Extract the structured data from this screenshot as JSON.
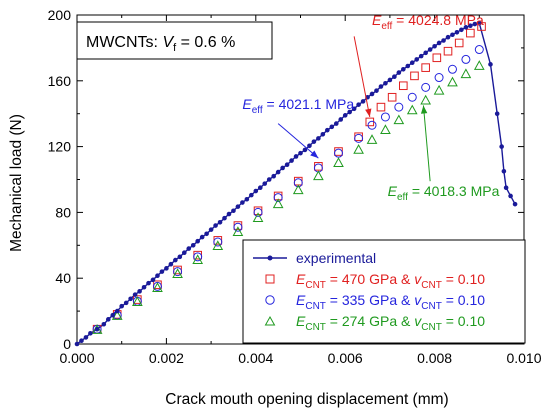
{
  "chart_data": {
    "type": "scatter",
    "title": "",
    "xlabel": "Crack mouth opening displacement (mm)",
    "ylabel": "Mechanical load (N)",
    "xlim": [
      0,
      0.01
    ],
    "ylim": [
      0,
      200
    ],
    "x_ticks": [
      0,
      0.002,
      0.004,
      0.006,
      0.008,
      0.01
    ],
    "x_tick_labels": [
      "0.000",
      "0.002",
      "0.004",
      "0.006",
      "0.008",
      "0.010"
    ],
    "y_ticks": [
      0,
      40,
      80,
      120,
      160,
      200
    ],
    "y_tick_labels": [
      "0",
      "40",
      "80",
      "120",
      "160",
      "200"
    ],
    "grid": false,
    "legend_position": "bottom-right",
    "info_box": {
      "prefix": "MWCNTs: ",
      "var": "V",
      "sub": "f",
      "suffix": " = 0.6 %"
    },
    "series": [
      {
        "name": "experimental",
        "marker": "filled-circle-line",
        "color": "#1a1a99",
        "points": [
          [
            0.0,
            0
          ],
          [
            0.0001,
            2
          ],
          [
            0.0002,
            4
          ],
          [
            0.0003,
            6.5
          ],
          [
            0.00045,
            9
          ],
          [
            0.0006,
            12
          ],
          [
            0.0007,
            15
          ],
          [
            0.0008,
            17.5
          ],
          [
            0.0009,
            20
          ],
          [
            0.001,
            23
          ],
          [
            0.0011,
            25
          ],
          [
            0.0012,
            27.5
          ],
          [
            0.0013,
            30
          ],
          [
            0.0014,
            32
          ],
          [
            0.0015,
            34.5
          ],
          [
            0.0016,
            37
          ],
          [
            0.0017,
            39
          ],
          [
            0.0018,
            41.5
          ],
          [
            0.0019,
            44
          ],
          [
            0.002,
            46
          ],
          [
            0.0021,
            48.5
          ],
          [
            0.0022,
            51
          ],
          [
            0.0023,
            53
          ],
          [
            0.0024,
            55.5
          ],
          [
            0.0025,
            58
          ],
          [
            0.0026,
            60
          ],
          [
            0.0027,
            62.5
          ],
          [
            0.0028,
            65
          ],
          [
            0.0029,
            67
          ],
          [
            0.003,
            69.5
          ],
          [
            0.0031,
            72
          ],
          [
            0.0032,
            74
          ],
          [
            0.0033,
            76.5
          ],
          [
            0.0034,
            79
          ],
          [
            0.0035,
            81
          ],
          [
            0.0036,
            83.5
          ],
          [
            0.0037,
            86
          ],
          [
            0.0038,
            88
          ],
          [
            0.0039,
            90.5
          ],
          [
            0.004,
            93
          ],
          [
            0.0041,
            95
          ],
          [
            0.0042,
            97.5
          ],
          [
            0.0043,
            100
          ],
          [
            0.0044,
            102
          ],
          [
            0.0045,
            104.5
          ],
          [
            0.0046,
            107
          ],
          [
            0.0047,
            109
          ],
          [
            0.0048,
            111.5
          ],
          [
            0.0049,
            114
          ],
          [
            0.005,
            116
          ],
          [
            0.0051,
            118
          ],
          [
            0.0052,
            120.5
          ],
          [
            0.0053,
            123
          ],
          [
            0.0054,
            125
          ],
          [
            0.0055,
            127.5
          ],
          [
            0.0056,
            130
          ],
          [
            0.0057,
            132
          ],
          [
            0.0058,
            134
          ],
          [
            0.0059,
            136.5
          ],
          [
            0.006,
            139
          ],
          [
            0.0061,
            141
          ],
          [
            0.0062,
            143
          ],
          [
            0.0063,
            145.5
          ],
          [
            0.0064,
            147.5
          ],
          [
            0.0065,
            150
          ],
          [
            0.0066,
            152
          ],
          [
            0.0067,
            154
          ],
          [
            0.0068,
            156.5
          ],
          [
            0.0069,
            158.5
          ],
          [
            0.007,
            160.5
          ],
          [
            0.0071,
            162.5
          ],
          [
            0.0072,
            165
          ],
          [
            0.0073,
            167
          ],
          [
            0.0074,
            169
          ],
          [
            0.0075,
            171
          ],
          [
            0.0076,
            173
          ],
          [
            0.0077,
            175
          ],
          [
            0.0078,
            177
          ],
          [
            0.0079,
            179
          ],
          [
            0.008,
            181
          ],
          [
            0.0081,
            183
          ],
          [
            0.0082,
            184.5
          ],
          [
            0.0083,
            186.5
          ],
          [
            0.0084,
            188
          ],
          [
            0.0085,
            189.5
          ],
          [
            0.0086,
            191
          ],
          [
            0.0087,
            192.5
          ],
          [
            0.0088,
            193.5
          ],
          [
            0.0089,
            194.5
          ],
          [
            0.009,
            195
          ],
          [
            0.00925,
            170
          ],
          [
            0.0094,
            140
          ],
          [
            0.0095,
            120
          ],
          [
            0.00955,
            105
          ],
          [
            0.0096,
            95
          ],
          [
            0.0097,
            90
          ],
          [
            0.0098,
            85
          ]
        ]
      },
      {
        "name_var": "E",
        "name_sub": "CNT",
        "name_mid": " = 470 GPa & ",
        "name_var2": "v",
        "name_sub2": "CNT",
        "name_tail": " = 0.10",
        "marker": "square",
        "color": "#e02020",
        "points": [
          [
            0.00045,
            9
          ],
          [
            0.0009,
            18
          ],
          [
            0.00135,
            27
          ],
          [
            0.0018,
            36
          ],
          [
            0.00225,
            45
          ],
          [
            0.0027,
            54
          ],
          [
            0.00315,
            63
          ],
          [
            0.0036,
            72
          ],
          [
            0.00405,
            81
          ],
          [
            0.0045,
            90
          ],
          [
            0.00495,
            99
          ],
          [
            0.0054,
            108
          ],
          [
            0.00585,
            117
          ],
          [
            0.0063,
            126
          ],
          [
            0.00655,
            135
          ],
          [
            0.0068,
            144
          ],
          [
            0.00705,
            150
          ],
          [
            0.0073,
            157
          ],
          [
            0.00755,
            163
          ],
          [
            0.0078,
            168
          ],
          [
            0.00805,
            174
          ],
          [
            0.0083,
            178
          ],
          [
            0.00855,
            183
          ],
          [
            0.0088,
            189
          ],
          [
            0.00905,
            193
          ]
        ]
      },
      {
        "name_var": "E",
        "name_sub": "CNT",
        "name_mid": " = 335 GPa & ",
        "name_var2": "v",
        "name_sub2": "CNT",
        "name_tail": " = 0.10",
        "marker": "circle",
        "color": "#2525dd",
        "points": [
          [
            0.00045,
            9
          ],
          [
            0.0009,
            17.5
          ],
          [
            0.00135,
            26
          ],
          [
            0.0018,
            35
          ],
          [
            0.00225,
            44
          ],
          [
            0.0027,
            53
          ],
          [
            0.00315,
            62
          ],
          [
            0.0036,
            71
          ],
          [
            0.00405,
            80
          ],
          [
            0.0045,
            89
          ],
          [
            0.00495,
            98
          ],
          [
            0.0054,
            107
          ],
          [
            0.00585,
            116
          ],
          [
            0.0063,
            125
          ],
          [
            0.0066,
            133
          ],
          [
            0.0069,
            138
          ],
          [
            0.0072,
            144
          ],
          [
            0.0075,
            150
          ],
          [
            0.0078,
            156
          ],
          [
            0.0081,
            162
          ],
          [
            0.0084,
            167
          ],
          [
            0.0087,
            173
          ],
          [
            0.009,
            179
          ]
        ]
      },
      {
        "name_var": "E",
        "name_sub": "CNT",
        "name_mid": " = 274 GPa & ",
        "name_var2": "v",
        "name_sub2": "CNT",
        "name_tail": " = 0.10",
        "marker": "triangle",
        "color": "#1f9a1f",
        "points": [
          [
            0.00045,
            8.5
          ],
          [
            0.0009,
            17
          ],
          [
            0.00135,
            25.5
          ],
          [
            0.0018,
            34
          ],
          [
            0.00225,
            42.5
          ],
          [
            0.0027,
            51
          ],
          [
            0.00315,
            59.5
          ],
          [
            0.0036,
            68
          ],
          [
            0.00405,
            76.5
          ],
          [
            0.0045,
            85
          ],
          [
            0.00495,
            93.5
          ],
          [
            0.0054,
            102
          ],
          [
            0.00585,
            110
          ],
          [
            0.0063,
            118
          ],
          [
            0.0066,
            124
          ],
          [
            0.0069,
            130
          ],
          [
            0.0072,
            136
          ],
          [
            0.0075,
            142
          ],
          [
            0.0078,
            148
          ],
          [
            0.0081,
            154
          ],
          [
            0.0084,
            159
          ],
          [
            0.0087,
            164
          ],
          [
            0.009,
            169
          ]
        ]
      }
    ],
    "annotations": [
      {
        "label_var": "E",
        "label_sub": "eff",
        "label_text": " = 4024.8 MPa",
        "color": "#e02020",
        "text_at": [
          0.0066,
          194
        ],
        "arrow_from": [
          0.0062,
          187
        ],
        "arrow_to": [
          0.00655,
          138
        ]
      },
      {
        "label_var": "E",
        "label_sub": "eff",
        "label_text": " = 4021.1 MPa",
        "color": "#2525dd",
        "text_at": [
          0.0037,
          143
        ],
        "arrow_from": [
          0.0045,
          134
        ],
        "arrow_to": [
          0.0054,
          113
        ]
      },
      {
        "label_var": "E",
        "label_sub": "eff",
        "label_text": " = 4018.3 MPa",
        "color": "#1f9a1f",
        "text_at": [
          0.00695,
          90
        ],
        "arrow_from": [
          0.0079,
          99
        ],
        "arrow_to": [
          0.00775,
          145
        ]
      }
    ]
  }
}
